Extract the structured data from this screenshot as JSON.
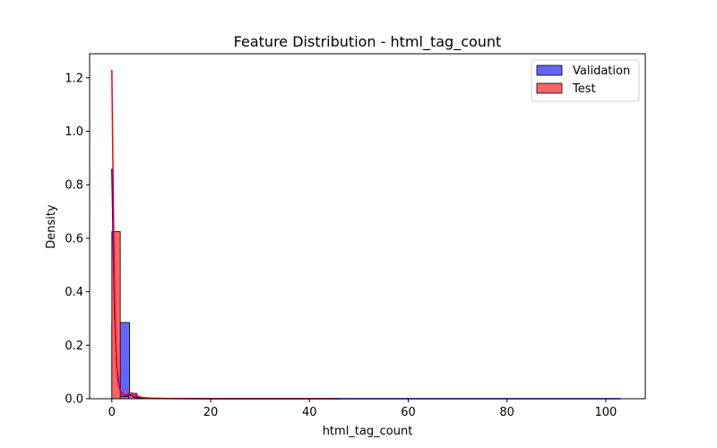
{
  "chart_data": {
    "type": "histogram",
    "title": "Feature Distribution - html_tag_count",
    "xlabel": "html_tag_count",
    "ylabel": "Density",
    "xlim": [
      -4.5,
      108
    ],
    "ylim": [
      0,
      1.29
    ],
    "x_ticks": [
      0,
      20,
      40,
      60,
      80,
      100
    ],
    "y_ticks": [
      0.0,
      0.2,
      0.4,
      0.6,
      0.8,
      1.0,
      1.2
    ],
    "grid": false,
    "legend_position": "top-right",
    "series": [
      {
        "name": "Validation",
        "color": "#0000ff",
        "bar_fill": "#6464ff",
        "bins": [
          {
            "x0": 0,
            "x1": 3.6,
            "value": 0.285
          },
          {
            "x0": 3.6,
            "x1": 7.2,
            "value": 0.004
          },
          {
            "x0": 7.2,
            "x1": 103,
            "value": 0.0
          }
        ],
        "kde": [
          [
            0,
            0.86
          ],
          [
            0.3,
            0.55
          ],
          [
            0.6,
            0.3
          ],
          [
            1.0,
            0.12
          ],
          [
            1.5,
            0.04
          ],
          [
            2.2,
            0.015
          ],
          [
            3.0,
            0.01
          ],
          [
            3.8,
            0.014
          ],
          [
            4.5,
            0.006
          ],
          [
            6,
            0.003
          ],
          [
            9,
            0.001
          ],
          [
            20,
            0.0
          ],
          [
            40,
            0.0
          ],
          [
            60,
            0.0
          ],
          [
            80,
            0.0
          ],
          [
            103,
            0.0
          ]
        ]
      },
      {
        "name": "Test",
        "color": "#ff0000",
        "bar_fill": "#ff6464",
        "bins": [
          {
            "x0": 0,
            "x1": 1.7,
            "value": 0.625
          },
          {
            "x0": 1.7,
            "x1": 3.4,
            "value": 0.008
          },
          {
            "x0": 3.4,
            "x1": 5.1,
            "value": 0.02
          },
          {
            "x0": 5.1,
            "x1": 6.8,
            "value": 0.004
          },
          {
            "x0": 6.8,
            "x1": 8.5,
            "value": 0.002
          },
          {
            "x0": 8.5,
            "x1": 46,
            "value": 0.0
          }
        ],
        "kde": [
          [
            0,
            1.23
          ],
          [
            0.2,
            0.9
          ],
          [
            0.5,
            0.45
          ],
          [
            0.8,
            0.2
          ],
          [
            1.2,
            0.07
          ],
          [
            1.8,
            0.02
          ],
          [
            2.6,
            0.012
          ],
          [
            3.4,
            0.018
          ],
          [
            4.0,
            0.022
          ],
          [
            4.8,
            0.012
          ],
          [
            6,
            0.005
          ],
          [
            8,
            0.002
          ],
          [
            12,
            0.001
          ],
          [
            20,
            0.0
          ],
          [
            30,
            0.0
          ],
          [
            46,
            0.0
          ]
        ]
      }
    ]
  }
}
